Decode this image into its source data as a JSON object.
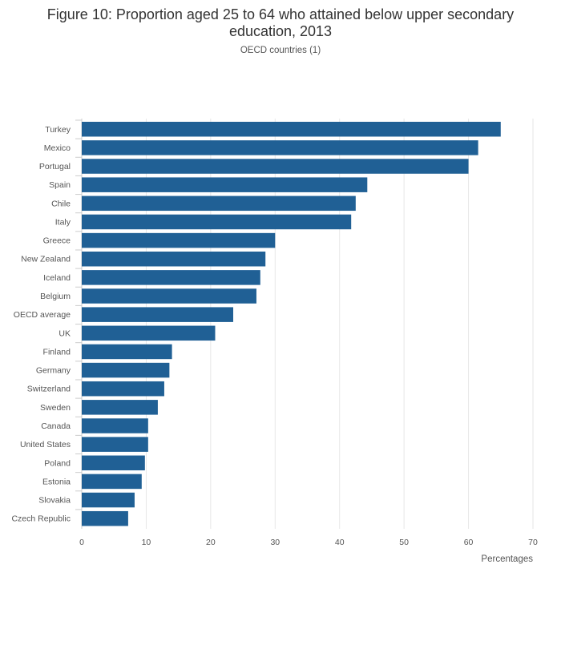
{
  "chart_data": {
    "type": "bar",
    "orientation": "horizontal",
    "title_line1": "Figure 10: Proportion aged 25 to 64 who attained below upper secondary",
    "title_line2": "education, 2013",
    "subtitle": "OECD countries (1)",
    "xlabel": "Percentages",
    "ylabel": "",
    "xlim": [
      0,
      70
    ],
    "xticks": [
      0,
      10,
      20,
      30,
      40,
      50,
      60,
      70
    ],
    "grid": true,
    "bar_color": "#206095",
    "categories": [
      "Turkey",
      "Mexico",
      "Portugal",
      "Spain",
      "Chile",
      "Italy",
      "Greece",
      "New Zealand",
      "Iceland",
      "Belgium",
      "OECD average",
      "UK",
      "Finland",
      "Germany",
      "Switzerland",
      "Sweden",
      "Canada",
      "United States",
      "Poland",
      "Estonia",
      "Slovakia",
      "Czech Republic"
    ],
    "values": [
      65,
      61.5,
      60,
      44.3,
      42.5,
      41.8,
      30,
      28.5,
      27.7,
      27.1,
      23.5,
      20.7,
      14,
      13.6,
      12.8,
      11.8,
      10.3,
      10.3,
      9.8,
      9.3,
      8.2,
      7.2
    ]
  }
}
